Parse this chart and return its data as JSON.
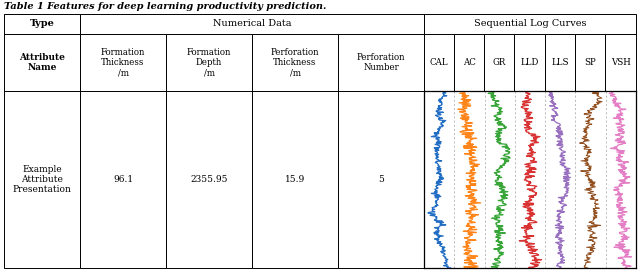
{
  "title": "Table 1 Features for deep learning productivity prediction.",
  "header_row1": [
    "Type",
    "Numerical Data",
    "Sequential Log Curves"
  ],
  "header_row2_type": "Attribute\nName",
  "header_row2_num": [
    "Formation\nThickness\n/m",
    "Formation\nDepth\n/m",
    "Perforation\nThickness\n/m",
    "Perforation\nNumber"
  ],
  "header_row2_seq": [
    "CAL",
    "AC",
    "GR",
    "LLD",
    "LLS",
    "SP",
    "VSH"
  ],
  "data_label": "Example\nAttribute\nPresentation",
  "data_values": [
    "96.1",
    "2355.95",
    "15.9",
    "5"
  ],
  "log_colors": [
    "#1565c0",
    "#ff7f0e",
    "#2ca02c",
    "#d62728",
    "#9467bd",
    "#8b4513",
    "#e377c2"
  ],
  "background_color": "#ffffff",
  "fig_width": 6.4,
  "fig_height": 2.7,
  "dpi": 100
}
